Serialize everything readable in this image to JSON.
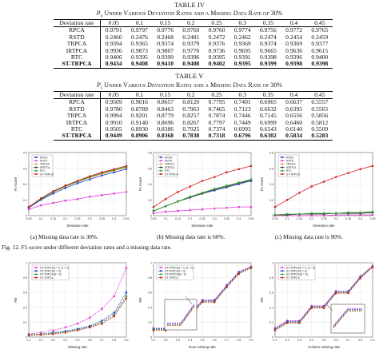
{
  "table4": {
    "title": "TABLE IV",
    "subtitle_sym": "P",
    "subtitle_sub": "d",
    "subtitle": "Under Various Deviation Rates and a Missing Data Rate of 30%",
    "header": [
      "Deviation rate",
      "0.05",
      "0.1",
      "0.15",
      "0.2",
      "0.25",
      "0.3",
      "0.35",
      "0.4",
      "0.45"
    ],
    "rows": [
      {
        "label": "RPCA",
        "values": [
          "0.9791",
          "0.9797",
          "0.9776",
          "0.9760",
          "0.9760",
          "0.9774",
          "0.9756",
          "0.9772",
          "0.9765"
        ]
      },
      {
        "label": "RSTD",
        "values": [
          "0.2466",
          "0.2476",
          "0.2468",
          "0.2481",
          "0.2472",
          "0.2462",
          "0.2474",
          "0.2454",
          "0.2459"
        ]
      },
      {
        "label": "TRPCA",
        "values": [
          "0.9394",
          "0.9365",
          "0.9374",
          "0.9379",
          "0.9376",
          "0.9369",
          "0.9374",
          "0.9369",
          "0.9377"
        ]
      },
      {
        "label": "IRTPCA",
        "values": [
          "0.9936",
          "0.9873",
          "0.9807",
          "0.9770",
          "0.9736",
          "0.9695",
          "0.9665",
          "0.9636",
          "0.9615"
        ]
      },
      {
        "label": "RTC",
        "values": [
          "0.9406",
          "0.9395",
          "0.9399",
          "0.9396",
          "0.9395",
          "0.9391",
          "0.9398",
          "0.9396",
          "0.9400"
        ]
      },
      {
        "label": "ST-TRPCA",
        "values": [
          "0.9434",
          "0.9408",
          "0.9410",
          "0.9408",
          "0.9402",
          "0.9395",
          "0.9399",
          "0.9398",
          "0.9398"
        ],
        "bold": true
      }
    ]
  },
  "table5": {
    "title": "TABLE V",
    "subtitle_sym": "P",
    "subtitle_sub": "f",
    "subtitle": "Under Various Deviation Rates and a Missing Data Rate of 30%",
    "header": [
      "Deviation rate",
      "0.05",
      "0.1",
      "0.15",
      "0.2",
      "0.25",
      "0.3",
      "0.35",
      "0.4",
      "0.45"
    ],
    "rows": [
      {
        "label": "RPCA",
        "values": [
          "0.9509",
          "0.9016",
          "0.8657",
          "0.8120",
          "0.7795",
          "0.7401",
          "0.6965",
          "0.6637",
          "0.5557"
        ]
      },
      {
        "label": "RSTD",
        "values": [
          "0.9780",
          "0.8789",
          "0.8463",
          "0.7963",
          "0.7465",
          "0.7123",
          "0.6632",
          "0.6395",
          "0.5565"
        ]
      },
      {
        "label": "TRPCA",
        "values": [
          "0.9994",
          "0.9201",
          "0.8779",
          "0.8257",
          "0.7874",
          "0.7446",
          "0.7145",
          "0.6556",
          "0.5856"
        ]
      },
      {
        "label": "IRTPCA",
        "values": [
          "0.9910",
          "0.9140",
          "0.8696",
          "0.8267",
          "0.7797",
          "0.7449",
          "0.6999",
          "0.6460",
          "0.5812"
        ]
      },
      {
        "label": "RTC",
        "values": [
          "0.9505",
          "0.8930",
          "0.8386",
          "0.7925",
          "0.7374",
          "0.6993",
          "0.6543",
          "0.6140",
          "0.5509"
        ]
      },
      {
        "label": "ST-TRPCA",
        "values": [
          "0.9449",
          "0.8906",
          "0.8368",
          "0.7838",
          "0.7318",
          "0.6796",
          "0.6302",
          "0.5834",
          "0.5283"
        ],
        "bold": true
      }
    ]
  },
  "fig12": {
    "caption": "Fig. 12.   F1-score under different deviation rates and a missing data rate.",
    "subcaptions": [
      "(a) Missing data rate is 30%.",
      "(b) Missing data rate is 60%.",
      "(c) Missing data rate is 90%."
    ],
    "xlabel": "Deviation rate",
    "ylabel": "F1-score",
    "legend": [
      "RPCA",
      "RSTD",
      "TRPCA",
      "IRTPCA",
      "RTC",
      "ST-TRPCA"
    ],
    "colors": [
      "#1f3fd6",
      "#e03ad8",
      "#e89a2a",
      "#3a3a3a",
      "#27a338",
      "#d42020"
    ]
  },
  "fig13": {
    "ylabel": "RE",
    "xlabels": [
      "Missing rate",
      "Row missing rate",
      "Column missing rate"
    ],
    "legend": [
      "ST-TRPCA(τ = 0, β = 0)",
      "ST-TRPCA(τ = 0)",
      "ST-TRPCA(β = 0)",
      "ST-TRPCA"
    ],
    "colors": [
      "#e03ad8",
      "#1f3fd6",
      "#27a338",
      "#d42020"
    ]
  },
  "chart_data": [
    {
      "type": "line",
      "title": "",
      "xlabel": "Deviation rate",
      "ylabel": "F1-score",
      "x": [
        0.05,
        0.1,
        0.15,
        0.2,
        0.25,
        0.3,
        0.35,
        0.4,
        0.45
      ],
      "ylim": [
        0,
        0.8
      ],
      "series": [
        {
          "name": "RPCA",
          "values": [
            0.1,
            0.2,
            0.28,
            0.35,
            0.41,
            0.46,
            0.51,
            0.55,
            0.59
          ]
        },
        {
          "name": "RSTD",
          "values": [
            0.08,
            0.13,
            0.16,
            0.19,
            0.21,
            0.24,
            0.26,
            0.28,
            0.3
          ]
        },
        {
          "name": "TRPCA",
          "values": [
            0.11,
            0.21,
            0.3,
            0.37,
            0.43,
            0.48,
            0.53,
            0.57,
            0.61
          ]
        },
        {
          "name": "IRTPCA",
          "values": [
            0.11,
            0.21,
            0.3,
            0.38,
            0.44,
            0.49,
            0.54,
            0.58,
            0.62
          ]
        },
        {
          "name": "RTC",
          "values": [
            0.11,
            0.21,
            0.3,
            0.37,
            0.43,
            0.49,
            0.54,
            0.58,
            0.62
          ]
        },
        {
          "name": "ST-TRPCA",
          "values": [
            0.11,
            0.22,
            0.31,
            0.38,
            0.44,
            0.5,
            0.55,
            0.59,
            0.63
          ]
        }
      ]
    },
    {
      "type": "line",
      "title": "",
      "xlabel": "Deviation rate",
      "ylabel": "F1-score",
      "x": [
        0.05,
        0.1,
        0.15,
        0.2,
        0.25,
        0.3,
        0.35,
        0.4,
        0.45
      ],
      "ylim": [
        0,
        0.8
      ],
      "series": [
        {
          "name": "RPCA",
          "values": [
            0.06,
            0.12,
            0.18,
            0.23,
            0.28,
            0.32,
            0.36,
            0.4,
            0.44
          ]
        },
        {
          "name": "RSTD",
          "values": [
            0.03,
            0.05,
            0.06,
            0.07,
            0.08,
            0.09,
            0.1,
            0.11,
            0.11
          ]
        },
        {
          "name": "TRPCA",
          "values": [
            0.06,
            0.12,
            0.18,
            0.24,
            0.29,
            0.33,
            0.37,
            0.41,
            0.45
          ]
        },
        {
          "name": "IRTPCA",
          "values": [
            0.06,
            0.12,
            0.18,
            0.23,
            0.28,
            0.33,
            0.37,
            0.41,
            0.45
          ]
        },
        {
          "name": "RTC",
          "values": [
            0.06,
            0.12,
            0.18,
            0.24,
            0.29,
            0.34,
            0.38,
            0.42,
            0.46
          ]
        },
        {
          "name": "ST-TRPCA",
          "values": [
            0.11,
            0.21,
            0.3,
            0.37,
            0.44,
            0.49,
            0.55,
            0.59,
            0.63
          ]
        }
      ]
    },
    {
      "type": "line",
      "title": "",
      "xlabel": "Deviation rate",
      "ylabel": "F1-score",
      "x": [
        0.05,
        0.1,
        0.15,
        0.2,
        0.25,
        0.3,
        0.35,
        0.4,
        0.45
      ],
      "ylim": [
        0,
        0.8
      ],
      "series": [
        {
          "name": "RPCA",
          "values": [
            0.01,
            0.01,
            0.02,
            0.02,
            0.02,
            0.03,
            0.03,
            0.03,
            0.04
          ]
        },
        {
          "name": "RSTD",
          "values": [
            0.0,
            0.0,
            0.0,
            0.0,
            0.0,
            0.01,
            0.01,
            0.01,
            0.01
          ]
        },
        {
          "name": "TRPCA",
          "values": [
            0.01,
            0.01,
            0.02,
            0.02,
            0.02,
            0.03,
            0.03,
            0.03,
            0.04
          ]
        },
        {
          "name": "IRTPCA",
          "values": [
            0.01,
            0.01,
            0.02,
            0.02,
            0.02,
            0.03,
            0.03,
            0.03,
            0.04
          ]
        },
        {
          "name": "RTC",
          "values": [
            0.01,
            0.02,
            0.02,
            0.03,
            0.03,
            0.03,
            0.04,
            0.04,
            0.05
          ]
        },
        {
          "name": "ST-TRPCA",
          "values": [
            0.11,
            0.2,
            0.29,
            0.37,
            0.43,
            0.49,
            0.54,
            0.59,
            0.63
          ]
        }
      ]
    },
    {
      "type": "line",
      "title": "",
      "xlabel": "Missing rate",
      "ylabel": "RE",
      "x": [
        0.1,
        0.2,
        0.3,
        0.4,
        0.5,
        0.6,
        0.7,
        0.8,
        0.9
      ],
      "ylim": [
        0,
        1
      ],
      "series": [
        {
          "name": "ST-TRPCA(τ = 0, β = 0)",
          "values": [
            0.04,
            0.06,
            0.09,
            0.13,
            0.18,
            0.26,
            0.38,
            0.55,
            0.93
          ]
        },
        {
          "name": "ST-TRPCA(τ = 0)",
          "values": [
            0.03,
            0.04,
            0.06,
            0.08,
            0.11,
            0.15,
            0.22,
            0.33,
            0.6
          ]
        },
        {
          "name": "ST-TRPCA(β = 0)",
          "values": [
            0.03,
            0.04,
            0.05,
            0.07,
            0.1,
            0.14,
            0.2,
            0.3,
            0.55
          ]
        },
        {
          "name": "ST-TRPCA",
          "values": [
            0.02,
            0.03,
            0.04,
            0.06,
            0.09,
            0.13,
            0.18,
            0.28,
            0.52
          ]
        }
      ]
    },
    {
      "type": "line",
      "title": "",
      "xlabel": "Row missing rate",
      "ylabel": "RE",
      "x": [
        0.1,
        0.2,
        0.3,
        0.4,
        0.5,
        0.6,
        0.7,
        0.8,
        0.9
      ],
      "ylim": [
        0,
        1
      ],
      "series": [
        {
          "name": "ST-TRPCA(τ = 0, β = 0)",
          "values": [
            0.12,
            0.12,
            0.3,
            0.3,
            0.5,
            0.5,
            0.7,
            0.88,
            0.95
          ]
        },
        {
          "name": "ST-TRPCA(τ = 0)",
          "values": [
            0.11,
            0.11,
            0.29,
            0.29,
            0.49,
            0.49,
            0.69,
            0.87,
            0.94
          ]
        },
        {
          "name": "ST-TRPCA(β = 0)",
          "values": [
            0.1,
            0.1,
            0.28,
            0.28,
            0.48,
            0.48,
            0.68,
            0.86,
            0.94
          ]
        },
        {
          "name": "ST-TRPCA",
          "values": [
            0.09,
            0.09,
            0.27,
            0.27,
            0.47,
            0.47,
            0.67,
            0.85,
            0.93
          ]
        }
      ]
    },
    {
      "type": "line",
      "title": "",
      "xlabel": "Column missing rate",
      "ylabel": "RE",
      "x": [
        0.1,
        0.2,
        0.3,
        0.4,
        0.5,
        0.6,
        0.7,
        0.8,
        0.9
      ],
      "ylim": [
        0,
        1
      ],
      "series": [
        {
          "name": "ST-TRPCA(τ = 0, β = 0)",
          "values": [
            0.12,
            0.22,
            0.22,
            0.42,
            0.42,
            0.62,
            0.62,
            0.82,
            0.96
          ]
        },
        {
          "name": "ST-TRPCA(τ = 0)",
          "values": [
            0.11,
            0.21,
            0.21,
            0.41,
            0.41,
            0.61,
            0.61,
            0.81,
            0.95
          ]
        },
        {
          "name": "ST-TRPCA(β = 0)",
          "values": [
            0.1,
            0.2,
            0.2,
            0.4,
            0.4,
            0.6,
            0.6,
            0.8,
            0.95
          ]
        },
        {
          "name": "ST-TRPCA",
          "values": [
            0.09,
            0.19,
            0.19,
            0.39,
            0.39,
            0.59,
            0.59,
            0.79,
            0.94
          ]
        }
      ]
    }
  ]
}
